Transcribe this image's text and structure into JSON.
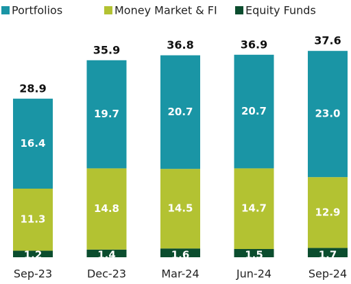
{
  "chart_data": {
    "type": "stacked_bar",
    "categories": [
      "Sep-23",
      "Dec-23",
      "Mar-24",
      "Jun-24",
      "Sep-24"
    ],
    "series": [
      {
        "name": "Equity Funds",
        "color": "#0b4d2e",
        "values": [
          1.2,
          1.4,
          1.6,
          1.5,
          1.7
        ]
      },
      {
        "name": "Money Market & FI",
        "color": "#b3c232",
        "values": [
          11.3,
          14.8,
          14.5,
          14.7,
          12.9
        ]
      },
      {
        "name": "Portfolios",
        "color": "#1a95a5",
        "values": [
          16.4,
          19.7,
          20.7,
          20.7,
          23.0
        ],
        "value_labels": [
          "16.4",
          "19.7",
          "20.7",
          "20.7",
          "23.0"
        ]
      }
    ],
    "totals": [
      28.9,
      35.9,
      36.8,
      36.9,
      37.6
    ]
  }
}
